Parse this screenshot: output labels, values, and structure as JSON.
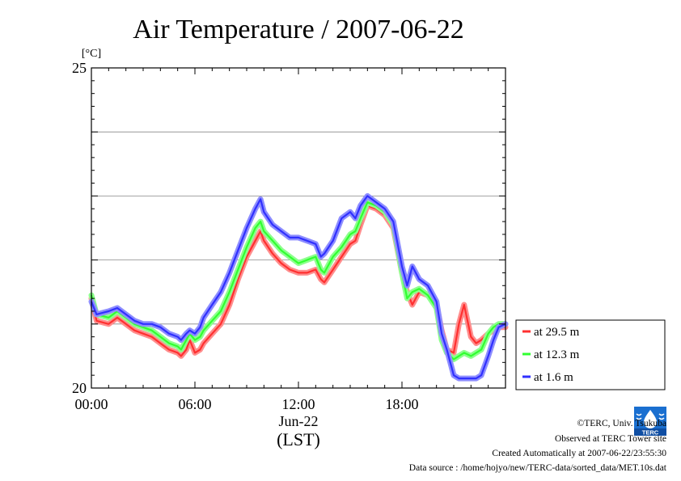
{
  "chart_data": {
    "type": "line",
    "title": "Air Temperature / 2007-06-22",
    "ylabel": "[°C]",
    "xlabel": "Jun-22",
    "xlabel2": "(LST)",
    "ylim": [
      20,
      25
    ],
    "xlim": [
      0,
      24
    ],
    "yticks": [
      {
        "v": 20,
        "label": "20"
      },
      {
        "v": 25,
        "label": "25"
      }
    ],
    "ygrid": [
      21,
      22,
      23,
      24
    ],
    "xticks": [
      {
        "v": 0,
        "label": "00:00"
      },
      {
        "v": 6,
        "label": "06:00"
      },
      {
        "v": 12,
        "label": "12:00"
      },
      {
        "v": 18,
        "label": "18:00"
      }
    ],
    "legend_position": "right",
    "series": [
      {
        "name": "at 29.5 m",
        "color": "#ff3030",
        "x": [
          0,
          0.3,
          1,
          1.5,
          2,
          2.5,
          3,
          3.5,
          4,
          4.5,
          5,
          5.2,
          5.5,
          5.7,
          6,
          6.3,
          6.5,
          7,
          7.5,
          8,
          8.5,
          9,
          9.5,
          9.8,
          10,
          10.5,
          11,
          11.5,
          12,
          12.5,
          13,
          13.3,
          13.5,
          14,
          14.5,
          15,
          15.3,
          15.6,
          16,
          16.5,
          17,
          17.5,
          18,
          18.3,
          18.6,
          19,
          19.5,
          20,
          20.3,
          20.6,
          21,
          21.3,
          21.6,
          22,
          22.3,
          22.6,
          23,
          23.3,
          23.6,
          24
        ],
        "y": [
          21.4,
          21.05,
          21.0,
          21.1,
          21.0,
          20.9,
          20.85,
          20.8,
          20.7,
          20.6,
          20.55,
          20.5,
          20.6,
          20.75,
          20.55,
          20.6,
          20.7,
          20.85,
          21.0,
          21.3,
          21.7,
          22.05,
          22.3,
          22.45,
          22.3,
          22.1,
          21.95,
          21.85,
          21.8,
          21.8,
          21.85,
          21.7,
          21.65,
          21.85,
          22.05,
          22.25,
          22.3,
          22.55,
          22.85,
          22.8,
          22.7,
          22.5,
          21.8,
          21.5,
          21.3,
          21.5,
          21.45,
          21.3,
          20.9,
          20.6,
          20.55,
          21.0,
          21.3,
          20.8,
          20.7,
          20.75,
          20.85,
          20.9,
          20.95,
          20.95
        ]
      },
      {
        "name": "at 12.3 m",
        "color": "#30ff30",
        "x": [
          0,
          0.3,
          1,
          1.5,
          2,
          2.5,
          3,
          3.5,
          4,
          4.5,
          5,
          5.2,
          5.5,
          5.7,
          6,
          6.3,
          6.5,
          7,
          7.5,
          8,
          8.5,
          9,
          9.5,
          9.8,
          10,
          10.5,
          11,
          11.5,
          12,
          12.5,
          13,
          13.3,
          13.5,
          14,
          14.5,
          15,
          15.3,
          15.6,
          16,
          16.5,
          17,
          17.5,
          18,
          18.3,
          18.6,
          19,
          19.5,
          20,
          20.3,
          20.6,
          21,
          21.3,
          21.6,
          22,
          22.3,
          22.6,
          23,
          23.3,
          23.6,
          24
        ],
        "y": [
          21.45,
          21.15,
          21.1,
          21.2,
          21.1,
          21.0,
          20.95,
          20.9,
          20.8,
          20.7,
          20.65,
          20.6,
          20.75,
          20.85,
          20.75,
          20.8,
          20.9,
          21.05,
          21.2,
          21.5,
          21.85,
          22.2,
          22.5,
          22.6,
          22.45,
          22.3,
          22.15,
          22.05,
          21.95,
          22.0,
          22.05,
          21.85,
          21.8,
          22.05,
          22.2,
          22.4,
          22.45,
          22.65,
          22.9,
          22.85,
          22.75,
          22.55,
          21.8,
          21.4,
          21.5,
          21.55,
          21.45,
          21.25,
          20.75,
          20.55,
          20.45,
          20.5,
          20.55,
          20.5,
          20.55,
          20.6,
          20.85,
          20.95,
          21.0,
          21.0
        ]
      },
      {
        "name": "at 1.6 m",
        "color": "#3030ff",
        "x": [
          0,
          0.3,
          1,
          1.5,
          2,
          2.5,
          3,
          3.5,
          4,
          4.5,
          5,
          5.2,
          5.5,
          5.7,
          6,
          6.3,
          6.5,
          7,
          7.5,
          8,
          8.5,
          9,
          9.5,
          9.8,
          10,
          10.5,
          11,
          11.5,
          12,
          12.5,
          13,
          13.3,
          13.5,
          14,
          14.5,
          15,
          15.3,
          15.6,
          16,
          16.5,
          17,
          17.5,
          18,
          18.3,
          18.6,
          19,
          19.5,
          20,
          20.3,
          20.6,
          21,
          21.3,
          21.6,
          22,
          22.3,
          22.6,
          23,
          23.3,
          23.6,
          24
        ],
        "y": [
          21.35,
          21.15,
          21.2,
          21.25,
          21.15,
          21.05,
          21.0,
          21.0,
          20.95,
          20.85,
          20.8,
          20.75,
          20.85,
          20.9,
          20.85,
          20.95,
          21.1,
          21.3,
          21.5,
          21.8,
          22.15,
          22.5,
          22.8,
          22.95,
          22.75,
          22.55,
          22.45,
          22.35,
          22.35,
          22.3,
          22.25,
          22.05,
          22.1,
          22.3,
          22.65,
          22.75,
          22.65,
          22.85,
          23.0,
          22.9,
          22.8,
          22.6,
          21.9,
          21.6,
          21.9,
          21.7,
          21.6,
          21.35,
          20.85,
          20.6,
          20.2,
          20.15,
          20.15,
          20.15,
          20.15,
          20.2,
          20.5,
          20.75,
          20.95,
          21.0
        ]
      }
    ]
  },
  "footer": {
    "copyright": "©TERC, Univ. Tsukuba",
    "observed": "Observed at TERC Tower site",
    "created": "Created Automatically at 2007-06-22/23:55:30",
    "source": "Data source : /home/hojyo/new/TERC-data/sorted_data/MET.10s.dat"
  },
  "logo": {
    "text": "TERC",
    "color": "#1a6fd0"
  }
}
